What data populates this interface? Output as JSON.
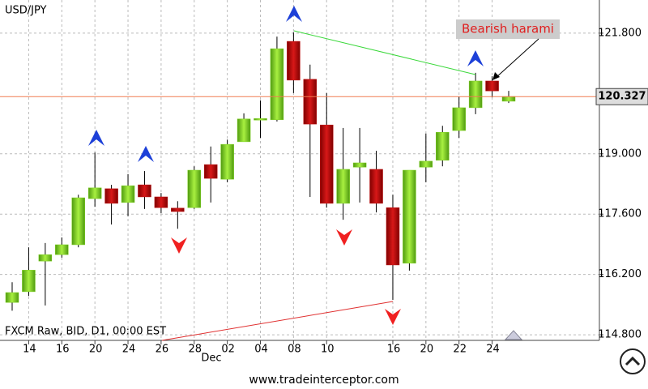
{
  "chart_data": {
    "type": "candlestick",
    "title": "USD/JPY",
    "subtitle": "FXCM Raw, BID, D1, 00:00 EST",
    "annotation": "Bearish harami",
    "month_label": "Dec",
    "footer": "www.tradeinterceptor.com",
    "categories": [
      null,
      "14",
      null,
      "16",
      null,
      "20",
      null,
      "24",
      null,
      "26",
      null,
      "28",
      null,
      "02",
      null,
      "04",
      null,
      "08",
      null,
      "10",
      null,
      null,
      null,
      "16",
      null,
      "20",
      null,
      "22",
      null,
      "24",
      null
    ],
    "open": [
      115.55,
      115.8,
      116.51,
      116.66,
      116.89,
      117.96,
      118.19,
      117.87,
      118.28,
      118.0,
      117.74,
      117.75,
      118.75,
      118.41,
      119.28,
      119.79,
      119.79,
      121.61,
      120.73,
      119.67,
      117.85,
      118.69,
      118.64,
      117.75,
      116.46,
      118.69,
      118.85,
      119.54,
      120.07,
      120.69,
      120.22
    ],
    "high": [
      116.02,
      116.83,
      116.93,
      117.06,
      118.05,
      119.03,
      118.28,
      118.53,
      118.6,
      118.09,
      117.9,
      118.71,
      119.17,
      119.33,
      119.94,
      120.24,
      121.72,
      121.82,
      121.07,
      120.41,
      119.6,
      119.6,
      119.07,
      118.05,
      118.62,
      119.47,
      119.65,
      120.33,
      120.88,
      120.8,
      120.46
    ],
    "low": [
      115.36,
      115.7,
      115.48,
      116.59,
      116.83,
      117.77,
      117.36,
      117.55,
      117.72,
      117.62,
      117.26,
      117.72,
      117.87,
      118.34,
      119.28,
      119.37,
      119.75,
      120.41,
      118.0,
      117.75,
      117.47,
      117.87,
      117.64,
      115.61,
      116.29,
      118.34,
      118.71,
      119.37,
      119.92,
      120.31,
      120.18
    ],
    "close": [
      115.78,
      116.3,
      116.66,
      116.89,
      117.98,
      118.21,
      117.85,
      118.26,
      118.0,
      117.75,
      117.66,
      118.62,
      118.43,
      119.22,
      119.81,
      119.82,
      121.44,
      120.71,
      119.69,
      117.85,
      118.64,
      118.79,
      117.85,
      116.42,
      118.62,
      118.83,
      119.5,
      120.07,
      120.69,
      120.46,
      120.33
    ],
    "up_color": "#7fd320",
    "down_color": "#c01010",
    "current_price": 120.327,
    "current_color": "#f07a50",
    "ylim": [
      114.67,
      122.57
    ],
    "yticks": [
      {
        "value": 114.8,
        "label": "114.800"
      },
      {
        "value": 116.2,
        "label": "116.200"
      },
      {
        "value": 117.6,
        "label": "117.600"
      },
      {
        "value": 119.0,
        "label": "119.000"
      },
      {
        "value": 121.8,
        "label": "121.800"
      }
    ],
    "grid": true
  }
}
